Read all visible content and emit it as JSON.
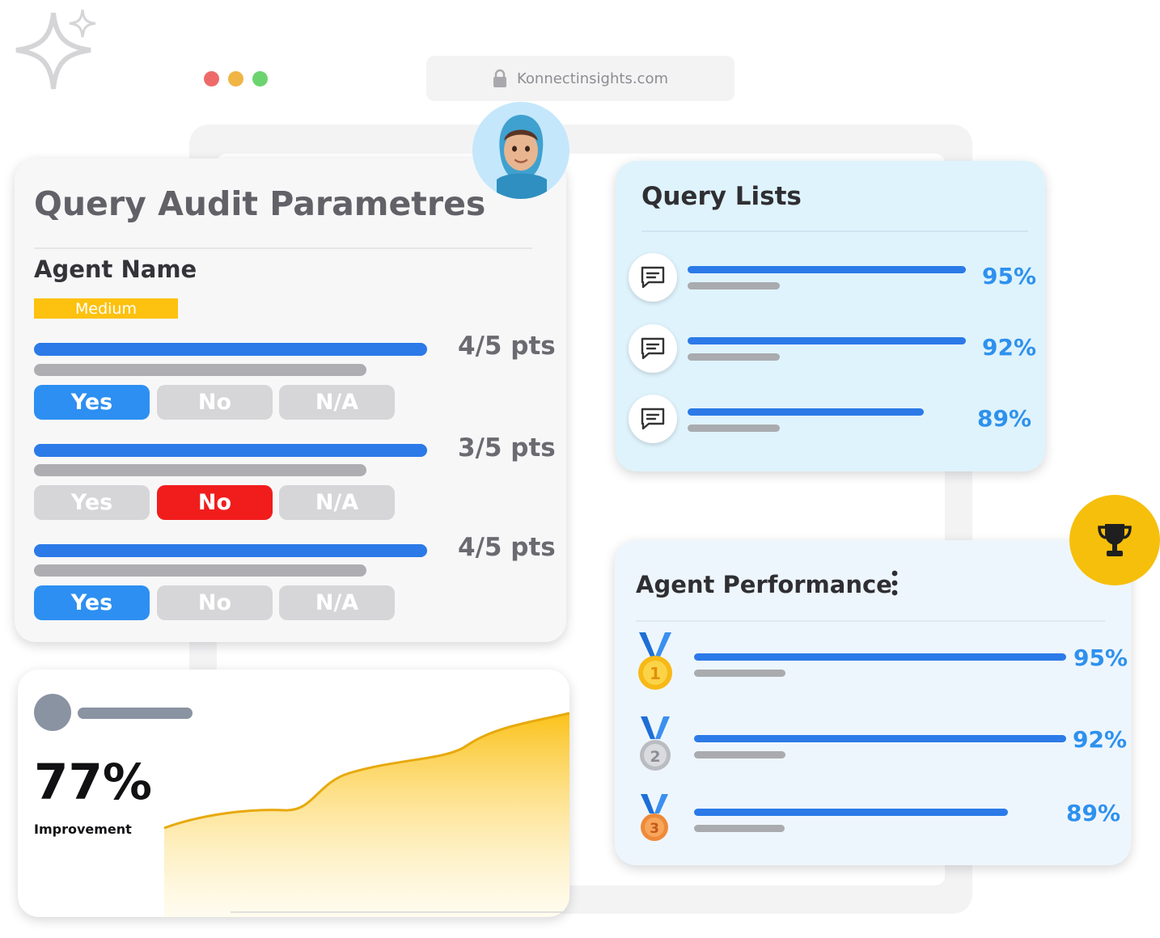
{
  "browser": {
    "url": "Konnectinsights.com",
    "window_dots": [
      "#ee6a6a",
      "#f0b545",
      "#6cd46f"
    ]
  },
  "audit": {
    "title": "Query Audit Parametres",
    "agent_label": "Agent Name",
    "priority_badge": "Medium",
    "questions": [
      {
        "score": "4/5 pts",
        "options": [
          "Yes",
          "No",
          "N/A"
        ],
        "selected": "Yes"
      },
      {
        "score": "3/5 pts",
        "options": [
          "Yes",
          "No",
          "N/A"
        ],
        "selected": "No"
      },
      {
        "score": "4/5 pts",
        "options": [
          "Yes",
          "No",
          "N/A"
        ],
        "selected": "Yes"
      }
    ]
  },
  "query_lists": {
    "title": "Query Lists",
    "items": [
      {
        "icon": "chat-bubble-icon",
        "percent": "95%",
        "progress": 0.95
      },
      {
        "icon": "chat-bubble-icon",
        "percent": "92%",
        "progress": 0.92
      },
      {
        "icon": "chat-bubble-icon",
        "percent": "89%",
        "progress": 0.89
      }
    ]
  },
  "agent_performance": {
    "title": "Agent Performance",
    "menu_icon": "more-vertical-icon",
    "badge_icon": "trophy-icon",
    "ranks": [
      {
        "medal": "gold-medal-icon",
        "rank": "1",
        "percent": "95%",
        "progress": 0.95
      },
      {
        "medal": "silver-medal-icon",
        "rank": "2",
        "percent": "92%",
        "progress": 0.92
      },
      {
        "medal": "bronze-medal-icon",
        "rank": "3",
        "percent": "89%",
        "progress": 0.89
      }
    ]
  },
  "improvement": {
    "value": "77%",
    "label": "Improvement",
    "accent": "#fbc21a"
  },
  "colors": {
    "primary_blue": "#2b7ae8",
    "percent_blue": "#2e91ee",
    "yes_active": "#2d8ff2",
    "no_active": "#f11d1d",
    "badge_yellow": "#fbc21a"
  }
}
